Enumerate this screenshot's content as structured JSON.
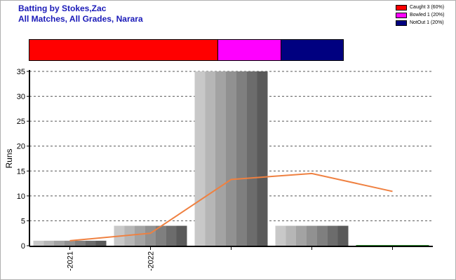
{
  "header": {
    "title": "Batting by Stokes,Zac",
    "subtitle": "All Matches, All Grades, Narara"
  },
  "legend": {
    "items": [
      {
        "label": "Caught 3 (60%)",
        "color": "#ff0000",
        "value": 60
      },
      {
        "label": "Bowled 1 (20%)",
        "color": "#ff00ff",
        "value": 20
      },
      {
        "label": "NotOut 1 (20%)",
        "color": "#000080",
        "value": 20
      }
    ]
  },
  "chart_data": {
    "type": "bar",
    "ylabel": "Runs",
    "ylim": [
      0,
      35
    ],
    "yticks": [
      0,
      5,
      10,
      15,
      20,
      25,
      30,
      35
    ],
    "grid": true,
    "legend_position": "top-right",
    "categories": [
      "2021",
      "2022",
      "",
      "",
      ""
    ],
    "values": [
      1,
      4,
      35,
      4,
      0
    ],
    "trend_line": [
      1,
      2.5,
      13.3,
      14.5,
      10.9
    ],
    "trend_color": "#ef8040",
    "bar_colors": [
      "#c8c8c8",
      "#5a5a5a"
    ]
  }
}
